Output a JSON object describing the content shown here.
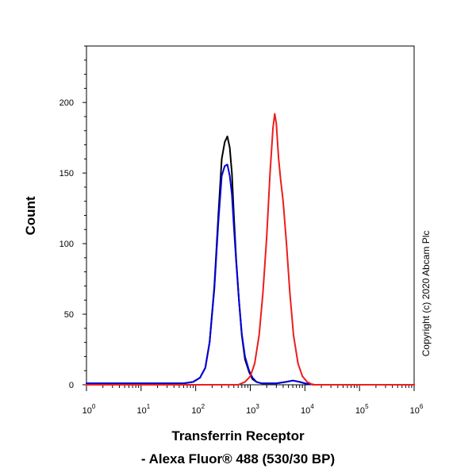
{
  "chart_data": {
    "type": "line",
    "xscale": "log",
    "xlim": [
      1,
      1000000
    ],
    "ylim": [
      0,
      240
    ],
    "ylabel": "Count",
    "xlabel_line1": "Transferrin Receptor",
    "xlabel_line2": "- Alexa Fluor® 488 (530/30 BP)",
    "x_ticks": [
      {
        "base": "10",
        "exp": "0",
        "value": 1
      },
      {
        "base": "10",
        "exp": "1",
        "value": 10
      },
      {
        "base": "10",
        "exp": "2",
        "value": 100
      },
      {
        "base": "10",
        "exp": "3",
        "value": 1000
      },
      {
        "base": "10",
        "exp": "4",
        "value": 10000
      },
      {
        "base": "10",
        "exp": "5",
        "value": 100000
      },
      {
        "base": "10",
        "exp": "6",
        "value": 1000000
      }
    ],
    "y_ticks": [
      "0",
      "50",
      "100",
      "150",
      "200"
    ],
    "series": [
      {
        "color": "#000000",
        "x": [
          1,
          60,
          90,
          120,
          150,
          180,
          220,
          260,
          300,
          340,
          380,
          420,
          460,
          500,
          550,
          620,
          700,
          800,
          950,
          1100,
          1300,
          1600,
          2000,
          3000,
          4500,
          6000,
          8000,
          10000,
          15000,
          50000,
          1000000
        ],
        "y": [
          1,
          1,
          2,
          5,
          12,
          30,
          70,
          120,
          160,
          172,
          176,
          168,
          150,
          120,
          90,
          60,
          35,
          18,
          9,
          4,
          2,
          1,
          1,
          1,
          2,
          3,
          2,
          1,
          0,
          0,
          0
        ]
      },
      {
        "color": "#0000dd",
        "x": [
          1,
          60,
          90,
          120,
          150,
          180,
          220,
          260,
          300,
          340,
          380,
          420,
          460,
          500,
          550,
          620,
          700,
          800,
          950,
          1100,
          1300,
          1600,
          2000,
          3000,
          4500,
          6000,
          8000,
          10000,
          15000,
          50000,
          1000000
        ],
        "y": [
          1,
          1,
          2,
          5,
          12,
          30,
          68,
          115,
          148,
          155,
          156,
          148,
          135,
          112,
          88,
          60,
          36,
          20,
          10,
          5,
          2,
          1,
          1,
          1,
          2,
          3,
          2,
          1,
          0,
          0,
          0
        ]
      },
      {
        "color": "#ee1c1c",
        "x": [
          1,
          600,
          800,
          1000,
          1200,
          1450,
          1700,
          2000,
          2300,
          2600,
          2800,
          3000,
          3300,
          3600,
          4000,
          4600,
          5300,
          6200,
          7500,
          9000,
          11000,
          14000,
          20000,
          1000000
        ],
        "y": [
          0,
          0,
          2,
          6,
          15,
          35,
          65,
          105,
          150,
          182,
          192,
          185,
          160,
          145,
          130,
          100,
          65,
          35,
          15,
          6,
          2,
          0,
          0,
          0
        ]
      }
    ]
  },
  "copyright": "Copyright (c) 2020 Abcam Plc"
}
